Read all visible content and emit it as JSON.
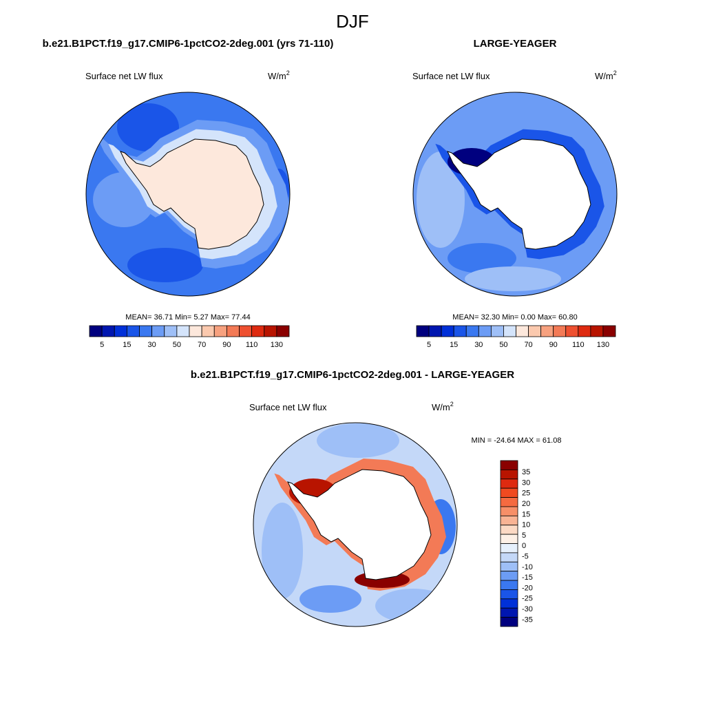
{
  "title": "DJF",
  "panels": [
    {
      "case": "b.e21.B1PCT.f19_g17.CMIP6-1pctCO2-2deg.001 (yrs 71-110)",
      "variable": "Surface net LW flux",
      "units": "W/m",
      "units_exponent": "2",
      "stats": {
        "mean_label": "MEAN=",
        "mean": "36.71",
        "min_label": "Min=",
        "min": "5.27",
        "max_label": "Max=",
        "max": "77.44"
      },
      "colorbar": {
        "colors": [
          "#00007f",
          "#0016b0",
          "#0030d8",
          "#1a55e8",
          "#3a78f0",
          "#6c9cf5",
          "#9ebff7",
          "#d4e4fb",
          "#fde8dc",
          "#fbc9ae",
          "#f7a17f",
          "#f37a56",
          "#ee5030",
          "#de2a10",
          "#b81400",
          "#8a0000"
        ],
        "labels": [
          5,
          15,
          30,
          50,
          70,
          90,
          110,
          130
        ]
      }
    },
    {
      "case": "LARGE-YEAGER",
      "variable": "Surface net LW flux",
      "units": "W/m",
      "units_exponent": "2",
      "stats": {
        "mean_label": "MEAN=",
        "mean": "32.30",
        "min_label": "Min=",
        "min": "0.00",
        "max_label": "Max=",
        "max": "60.80"
      },
      "colorbar": {
        "colors": [
          "#00007f",
          "#0016b0",
          "#0030d8",
          "#1a55e8",
          "#3a78f0",
          "#6c9cf5",
          "#9ebff7",
          "#d4e4fb",
          "#fde8dc",
          "#fbc9ae",
          "#f7a17f",
          "#f37a56",
          "#ee5030",
          "#de2a10",
          "#b81400",
          "#8a0000"
        ],
        "labels": [
          5,
          15,
          30,
          50,
          70,
          90,
          110,
          130
        ]
      }
    },
    {
      "case": "b.e21.B1PCT.f19_g17.CMIP6-1pctCO2-2deg.001 - LARGE-YEAGER",
      "variable": "Surface net LW flux",
      "units": "W/m",
      "units_exponent": "2",
      "stats": {
        "min_label": "MIN =",
        "min": "-24.64",
        "max_label": "MAX =",
        "max": "61.08"
      },
      "colorbar": {
        "colors": [
          "#8a0000",
          "#b81400",
          "#de2a10",
          "#f04a20",
          "#f56a40",
          "#f78f68",
          "#f9b394",
          "#fcd9c4",
          "#fdf0e6",
          "#e6f0fc",
          "#c4d8f8",
          "#9ebff7",
          "#6c9cf5",
          "#3a78f0",
          "#1a55e8",
          "#0030d8",
          "#0016b0",
          "#00007f"
        ],
        "labels": [
          35,
          30,
          25,
          20,
          15,
          10,
          5,
          0,
          -5,
          -10,
          -15,
          -20,
          -25,
          -30,
          -35
        ]
      }
    }
  ]
}
